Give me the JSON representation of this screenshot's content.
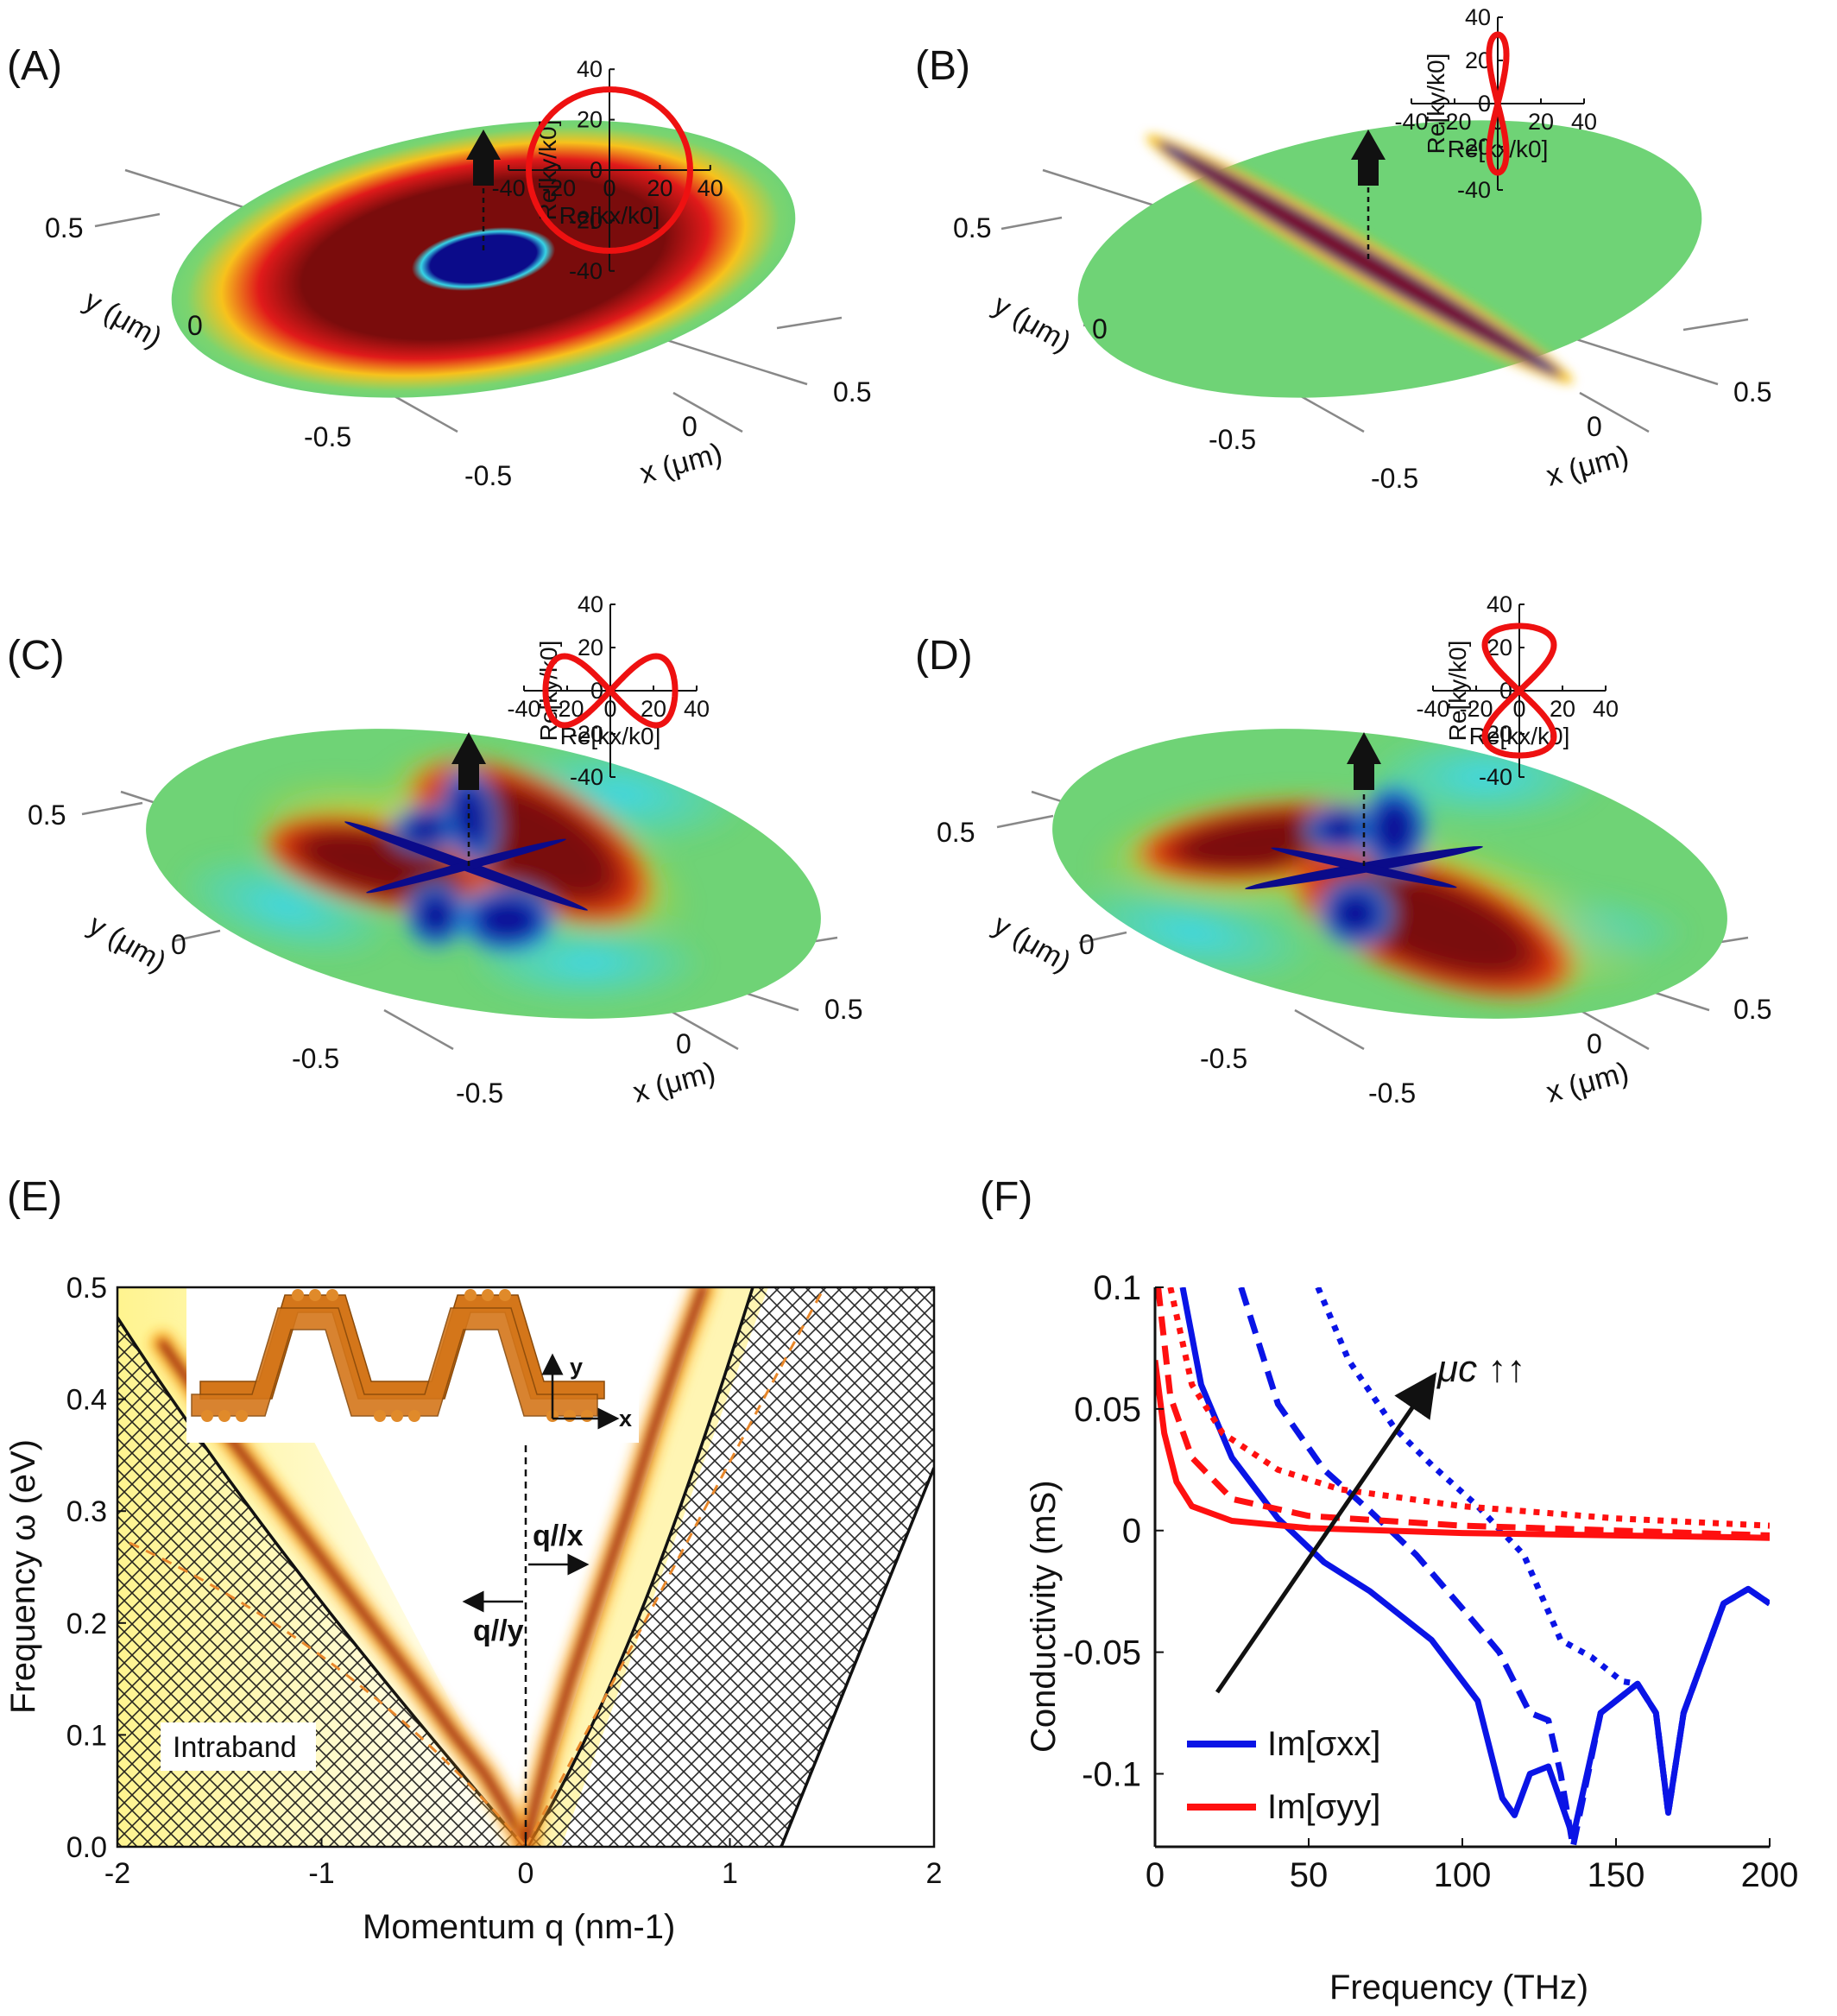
{
  "panels": {
    "A": {
      "label": "(A)"
    },
    "B": {
      "label": "(B)"
    },
    "C": {
      "label": "(C)"
    },
    "D": {
      "label": "(D)"
    },
    "E": {
      "label": "(E)"
    },
    "F": {
      "label": "(F)"
    }
  },
  "field_maps": {
    "axis_ticks": {
      "y_pos": "0.5",
      "y_zero": "0",
      "x_neg": "-0.5",
      "x_zero": "0",
      "x_pos": "0.5",
      "y_neg": "-0.5"
    },
    "y_label": "y (μm)",
    "x_label": "x (μm)"
  },
  "inset": {
    "yticks": [
      "40",
      "20",
      "0",
      "-20",
      "-40"
    ],
    "xticks": [
      "-40",
      "-20",
      "0",
      "20",
      "40"
    ],
    "xlabel": "Re[kx/k0]",
    "ylabel": "Re[ky/k0]"
  },
  "chart_data": [
    {
      "panel": "E",
      "type": "heatmap",
      "title": "",
      "xlabel": "Momentum q (nm-1)",
      "ylabel": "Frequency ω (eV)",
      "xlim": [
        -2,
        2
      ],
      "ylim": [
        0.0,
        0.5
      ],
      "xticks": [
        "-2",
        "-1",
        "0",
        "1",
        "2"
      ],
      "yticks": [
        "0.0",
        "0.1",
        "0.2",
        "0.3",
        "0.4",
        "0.5"
      ],
      "annotations": {
        "intraband": "Intraband",
        "q_x": "q//x",
        "q_y": "q//y",
        "axis_y": "y",
        "axis_x": "x"
      },
      "branches": [
        {
          "name": "q//y",
          "points": [
            [
              0,
              0
            ],
            [
              -0.1,
              0.035
            ],
            [
              -0.2,
              0.065
            ],
            [
              -0.35,
              0.1
            ],
            [
              -0.55,
              0.15
            ],
            [
              -0.8,
              0.21
            ],
            [
              -1.05,
              0.27
            ],
            [
              -1.3,
              0.33
            ],
            [
              -1.55,
              0.39
            ],
            [
              -1.78,
              0.45
            ]
          ]
        },
        {
          "name": "q//x",
          "points": [
            [
              0,
              0
            ],
            [
              0.05,
              0.04
            ],
            [
              0.12,
              0.09
            ],
            [
              0.22,
              0.15
            ],
            [
              0.35,
              0.22
            ],
            [
              0.5,
              0.3
            ],
            [
              0.62,
              0.37
            ],
            [
              0.75,
              0.44
            ],
            [
              0.87,
              0.5
            ]
          ]
        }
      ]
    },
    {
      "panel": "F",
      "type": "line",
      "title": "",
      "xlabel": "Frequency (THz)",
      "ylabel": "Conductivity (mS)",
      "xlim": [
        0,
        200
      ],
      "ylim": [
        -0.13,
        0.1
      ],
      "xticks": [
        "0",
        "50",
        "100",
        "150",
        "200"
      ],
      "yticks": [
        "0.1",
        "0.05",
        "0",
        "-0.05",
        "-0.1"
      ],
      "annotation": "μc ↑↑",
      "legend": [
        "Im[σxx]",
        "Im[σyy]"
      ],
      "legend_position": "bottom-left",
      "series": [
        {
          "name": "Im[σxx]",
          "color": "#0a14e6",
          "dash": "solid",
          "points": [
            [
              9,
              0.1
            ],
            [
              15,
              0.06
            ],
            [
              25,
              0.03
            ],
            [
              40,
              0.005
            ],
            [
              55,
              -0.013
            ],
            [
              70,
              -0.025
            ],
            [
              90,
              -0.045
            ],
            [
              105,
              -0.07
            ],
            [
              113,
              -0.11
            ],
            [
              117,
              -0.117
            ],
            [
              122,
              -0.1
            ],
            [
              128,
              -0.097
            ],
            [
              133,
              -0.115
            ],
            [
              136,
              -0.126
            ],
            [
              145,
              -0.075
            ],
            [
              157,
              -0.063
            ],
            [
              163,
              -0.075
            ],
            [
              167,
              -0.116
            ],
            [
              172,
              -0.075
            ],
            [
              185,
              -0.03
            ],
            [
              193,
              -0.024
            ],
            [
              200,
              -0.03
            ]
          ]
        },
        {
          "name": "Im[σxx]",
          "color": "#0a14e6",
          "dash": "dashed",
          "points": [
            [
              28,
              0.1
            ],
            [
              40,
              0.052
            ],
            [
              55,
              0.025
            ],
            [
              70,
              0.008
            ],
            [
              85,
              -0.01
            ],
            [
              100,
              -0.032
            ],
            [
              112,
              -0.05
            ],
            [
              122,
              -0.075
            ],
            [
              128,
              -0.078
            ],
            [
              132,
              -0.1
            ],
            [
              136,
              -0.13
            ],
            [
              145,
              -0.075
            ],
            [
              157,
              -0.063
            ],
            [
              163,
              -0.075
            ],
            [
              167,
              -0.116
            ],
            [
              172,
              -0.075
            ],
            [
              185,
              -0.03
            ],
            [
              193,
              -0.024
            ],
            [
              200,
              -0.03
            ]
          ]
        },
        {
          "name": "Im[σxx]",
          "color": "#0a14e6",
          "dash": "dotted",
          "points": [
            [
              53,
              0.1
            ],
            [
              63,
              0.07
            ],
            [
              78,
              0.042
            ],
            [
              90,
              0.027
            ],
            [
              105,
              0.01
            ],
            [
              120,
              -0.01
            ],
            [
              132,
              -0.045
            ],
            [
              142,
              -0.052
            ],
            [
              152,
              -0.062
            ],
            [
              157,
              -0.063
            ],
            [
              163,
              -0.075
            ],
            [
              167,
              -0.116
            ],
            [
              172,
              -0.075
            ],
            [
              185,
              -0.03
            ],
            [
              193,
              -0.024
            ],
            [
              200,
              -0.03
            ]
          ]
        },
        {
          "name": "Im[σyy]",
          "color": "#ff1010",
          "dash": "solid",
          "points": [
            [
              0,
              0.07
            ],
            [
              3,
              0.04
            ],
            [
              7,
              0.02
            ],
            [
              12,
              0.01
            ],
            [
              25,
              0.004
            ],
            [
              50,
              0.001
            ],
            [
              100,
              -0.001
            ],
            [
              150,
              -0.002
            ],
            [
              200,
              -0.003
            ]
          ]
        },
        {
          "name": "Im[σyy]",
          "color": "#ff1010",
          "dash": "dashed",
          "points": [
            [
              1,
              0.1
            ],
            [
              5,
              0.055
            ],
            [
              12,
              0.03
            ],
            [
              25,
              0.013
            ],
            [
              50,
              0.006
            ],
            [
              100,
              0.002
            ],
            [
              150,
              0.0
            ],
            [
              200,
              -0.002
            ]
          ]
        },
        {
          "name": "Im[σyy]",
          "color": "#ff1010",
          "dash": "dotted",
          "points": [
            [
              5,
              0.1
            ],
            [
              12,
              0.06
            ],
            [
              22,
              0.04
            ],
            [
              40,
              0.025
            ],
            [
              60,
              0.017
            ],
            [
              100,
              0.01
            ],
            [
              150,
              0.005
            ],
            [
              200,
              0.002
            ]
          ]
        }
      ]
    },
    {
      "panel": "A-inset",
      "type": "line",
      "xlim": [
        -40,
        40
      ],
      "ylim": [
        -40,
        40
      ],
      "xlabel": "Re[kx/k0]",
      "ylabel": "Re[ky/k0]",
      "shape": "ellipse",
      "params": {
        "a": 32,
        "b": 32
      }
    },
    {
      "panel": "B-inset",
      "type": "line",
      "xlim": [
        -40,
        40
      ],
      "ylim": [
        -40,
        40
      ],
      "xlabel": "Re[kx/k0]",
      "ylabel": "Re[ky/k0]",
      "shape": "figure-eight-vertical",
      "params": {
        "a": 4,
        "b": 32
      }
    },
    {
      "panel": "C-inset",
      "type": "line",
      "xlim": [
        -40,
        40
      ],
      "ylim": [
        -40,
        40
      ],
      "xlabel": "Re[kx/k0]",
      "ylabel": "Re[ky/k0]",
      "shape": "figure-eight-horizontal",
      "params": {
        "a": 30,
        "b": 16
      }
    },
    {
      "panel": "D-inset",
      "type": "line",
      "xlim": [
        -40,
        40
      ],
      "ylim": [
        -40,
        40
      ],
      "xlabel": "Re[kx/k0]",
      "ylabel": "Re[ky/k0]",
      "shape": "figure-eight-vertical",
      "params": {
        "a": 16,
        "b": 30
      }
    }
  ]
}
